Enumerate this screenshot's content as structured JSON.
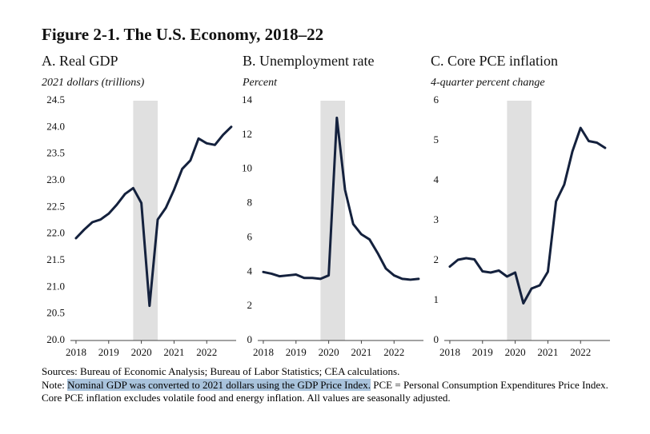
{
  "title": "Figure 2-1. The U.S. Economy, 2018–22",
  "sources": "Sources: Bureau of Economic Analysis; Bureau of Labor Statistics; CEA calculations.",
  "note": {
    "label": "Note:",
    "highlighted": "Nominal GDP was converted to 2021 dollars using the GDP Price Index.",
    "rest": "PCE = Personal Consumption Expenditures Price Index. Core PCE inflation excludes volatile food and energy inflation. All values are seasonally adjusted."
  },
  "chart_data": [
    {
      "type": "line",
      "title": "A. Real GDP",
      "subtitle": "2021 dollars (trillions)",
      "x": [
        2018,
        2018.25,
        2018.5,
        2018.75,
        2019,
        2019.25,
        2019.5,
        2019.75,
        2020,
        2020.25,
        2020.5,
        2020.75,
        2021,
        2021.25,
        2021.5,
        2021.75,
        2022,
        2022.25,
        2022.5,
        2022.75
      ],
      "values": [
        21.92,
        22.08,
        22.22,
        22.27,
        22.38,
        22.55,
        22.75,
        22.86,
        22.58,
        20.65,
        22.27,
        22.49,
        22.83,
        23.22,
        23.38,
        23.79,
        23.7,
        23.67,
        23.86,
        24.01
      ],
      "color": "#14213d",
      "shade": [
        2019.75,
        2020.5
      ],
      "xlim": [
        2017.83,
        2022.9
      ],
      "xticks": [
        2018,
        2019,
        2020,
        2021,
        2022
      ],
      "ylim": [
        20,
        24.5
      ],
      "yticks": [
        {
          "value": 20,
          "label": "20.0"
        },
        {
          "value": 20.5,
          "label": "20.5"
        },
        {
          "value": 21,
          "label": "21.0"
        },
        {
          "value": 21.5,
          "label": "21.5"
        },
        {
          "value": 22,
          "label": "22.0"
        },
        {
          "value": 22.5,
          "label": "22.5"
        },
        {
          "value": 23,
          "label": "23.0"
        },
        {
          "value": 23.5,
          "label": "23.5"
        },
        {
          "value": 24,
          "label": "24.0"
        },
        {
          "value": 24.5,
          "label": "24.5"
        }
      ]
    },
    {
      "type": "line",
      "title": "B. Unemployment rate",
      "subtitle": "Percent",
      "x": [
        2018,
        2018.25,
        2018.5,
        2018.75,
        2019,
        2019.25,
        2019.5,
        2019.75,
        2020,
        2020.25,
        2020.5,
        2020.75,
        2021,
        2021.25,
        2021.5,
        2021.75,
        2022,
        2022.25,
        2022.5,
        2022.75
      ],
      "values": [
        4.0,
        3.9,
        3.75,
        3.8,
        3.85,
        3.65,
        3.65,
        3.6,
        3.8,
        13.0,
        8.8,
        6.8,
        6.2,
        5.9,
        5.1,
        4.2,
        3.8,
        3.6,
        3.55,
        3.6
      ],
      "color": "#14213d",
      "shade": [
        2019.75,
        2020.5
      ],
      "xlim": [
        2017.83,
        2022.9
      ],
      "xticks": [
        2018,
        2019,
        2020,
        2021,
        2022
      ],
      "ylim": [
        0,
        14
      ],
      "yticks": [
        0,
        2,
        4,
        6,
        8,
        10,
        12,
        14
      ]
    },
    {
      "type": "line",
      "title": "C. Core PCE inflation",
      "subtitle": "4-quarter percent change",
      "x": [
        2018,
        2018.25,
        2018.5,
        2018.75,
        2019,
        2019.25,
        2019.5,
        2019.75,
        2020,
        2020.25,
        2020.5,
        2020.75,
        2021,
        2021.25,
        2021.5,
        2021.75,
        2022,
        2022.25,
        2022.5,
        2022.75
      ],
      "values": [
        1.85,
        2.02,
        2.06,
        2.03,
        1.73,
        1.7,
        1.75,
        1.6,
        1.7,
        0.93,
        1.3,
        1.38,
        1.72,
        3.48,
        3.9,
        4.73,
        5.32,
        4.99,
        4.95,
        4.82
      ],
      "color": "#14213d",
      "shade": [
        2019.75,
        2020.5
      ],
      "xlim": [
        2017.83,
        2022.9
      ],
      "xticks": [
        2018,
        2019,
        2020,
        2021,
        2022
      ],
      "ylim": [
        0,
        6
      ],
      "yticks": [
        0,
        1,
        2,
        3,
        4,
        5,
        6
      ]
    }
  ]
}
